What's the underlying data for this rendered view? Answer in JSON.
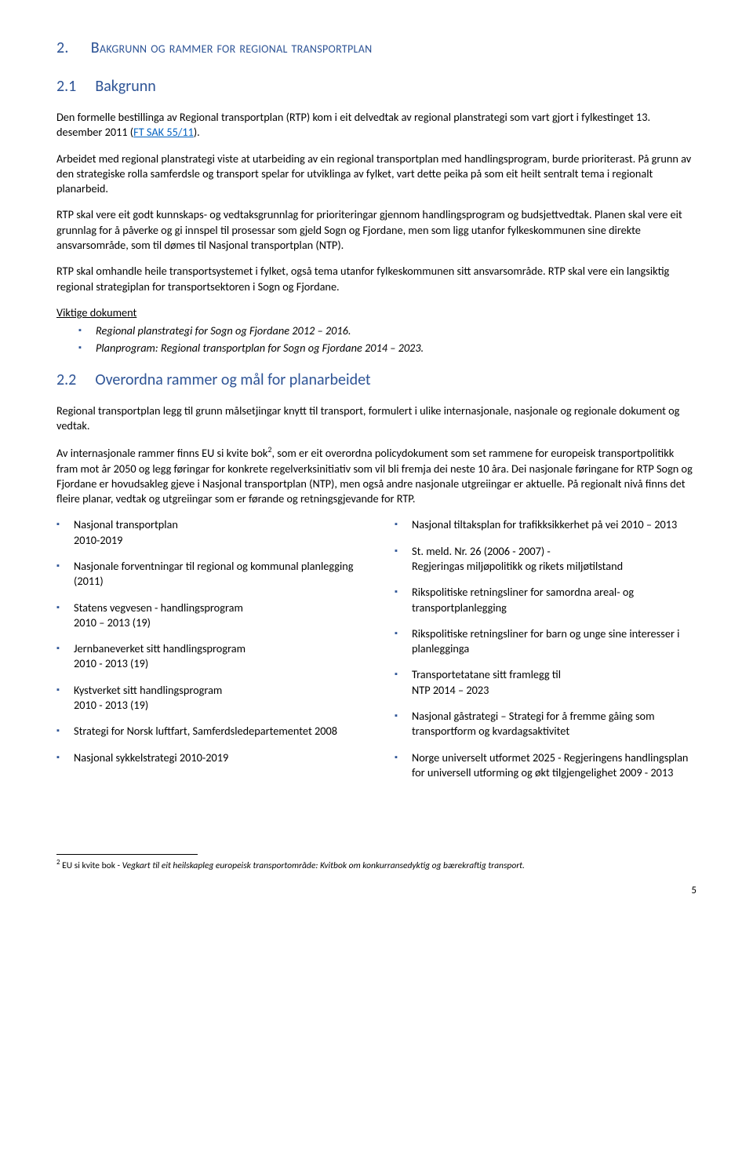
{
  "heading1": {
    "num": "2.",
    "text": "Bakgrunn og rammer for regional transportplan"
  },
  "heading2a": {
    "num": "2.1",
    "text": "Bakgrunn"
  },
  "p1a": "Den formelle bestillinga av Regional transportplan (RTP) kom i eit delvedtak av regional planstrategi som vart gjort i fylkestinget 13. desember 2011 (",
  "p1link": "FT SAK 55/11",
  "p1b": ").",
  "p2": "Arbeidet med regional planstrategi viste at utarbeiding av ein regional transportplan med handlingsprogram, burde prioriterast. På grunn av den strategiske rolla samferdsle og transport spelar for utviklinga av fylket, vart dette peika på som eit heilt sentralt tema i regionalt planarbeid.",
  "p3": "RTP skal vere eit godt kunnskaps- og vedtaksgrunnlag for prioriteringar gjennom handlingsprogram og budsjettvedtak. Planen skal vere eit grunnlag for å påverke og gi innspel til prosessar som gjeld Sogn og Fjordane, men som ligg utanfor fylkeskommunen sine direkte ansvarsområde, som til dømes til Nasjonal transportplan (NTP).",
  "p4": "RTP skal omhandle heile transportsystemet i fylket, også tema utanfor fylkeskommunen sitt ansvarsområde. RTP skal vere ein langsiktig regional strategiplan for transportsektoren i Sogn og Fjordane.",
  "docs_heading": "Viktige dokument",
  "docs": [
    "Regional planstrategi for Sogn og Fjordane 2012 – 2016.",
    "Planprogram: Regional transportplan for Sogn og Fjordane 2014 – 2023."
  ],
  "heading2b": {
    "num": "2.2",
    "text": "Overordna rammer og mål for planarbeidet"
  },
  "p5": "Regional transportplan legg til grunn målsetjingar knytt til transport, formulert i ulike internasjonale, nasjonale og regionale dokument og vedtak.",
  "p6a": "Av internasjonale rammer finns EU si kvite bok",
  "p6b": ", som er eit overordna policydokument som set rammene for europeisk transportpolitikk fram mot år 2050 og legg føringar for konkrete regelverksinitiativ som vil bli fremja dei neste 10 åra. Dei nasjonale føringane for RTP Sogn og Fjordane er hovudsakleg gjeve i Nasjonal transportplan (NTP), men også andre nasjonale utgreiingar er aktuelle. På regionalt nivå finns det fleire planar, vedtak og utgreiingar som er førande og retningsgjevande for RTP.",
  "fn_ref": "2",
  "left": [
    "Nasjonal transportplan\n2010-2019",
    "Nasjonale forventningar til regional og kommunal planlegging (2011)",
    "Statens vegvesen - handlingsprogram\n2010 – 2013 (19)",
    "Jernbaneverket sitt handlingsprogram\n2010 - 2013 (19)",
    "Kystverket sitt handlingsprogram\n2010 - 2013 (19)",
    "Strategi for Norsk luftfart, Samferdsledepartementet 2008",
    "Nasjonal sykkelstrategi 2010-2019"
  ],
  "right": [
    "Nasjonal tiltaksplan for trafikksikkerhet på vei 2010 – 2013",
    "St. meld. Nr. 26 (2006 - 2007) -\nRegjeringas miljøpolitikk og rikets miljøtilstand",
    "Rikspolitiske retningsliner for samordna areal- og transportplanlegging",
    "Rikspolitiske retningsliner for barn og unge sine interesser i planlegginga",
    "Transportetatane sitt framlegg til\nNTP 2014 – 2023",
    "Nasjonal gåstrategi – Strategi for å fremme gåing som transportform og kvardagsaktivitet",
    "Norge universelt utformet 2025 - Regjeringens handlingsplan for universell utforming og økt tilgjengelighet 2009 - 2013"
  ],
  "footnote": {
    "num": "2",
    "plain": " EU si kvite bok - ",
    "italic": "Vegkart til eit heilskapleg europeisk transportområde: Kvitbok om konkurransedyktig og bærekraftig transport."
  },
  "page": "5"
}
